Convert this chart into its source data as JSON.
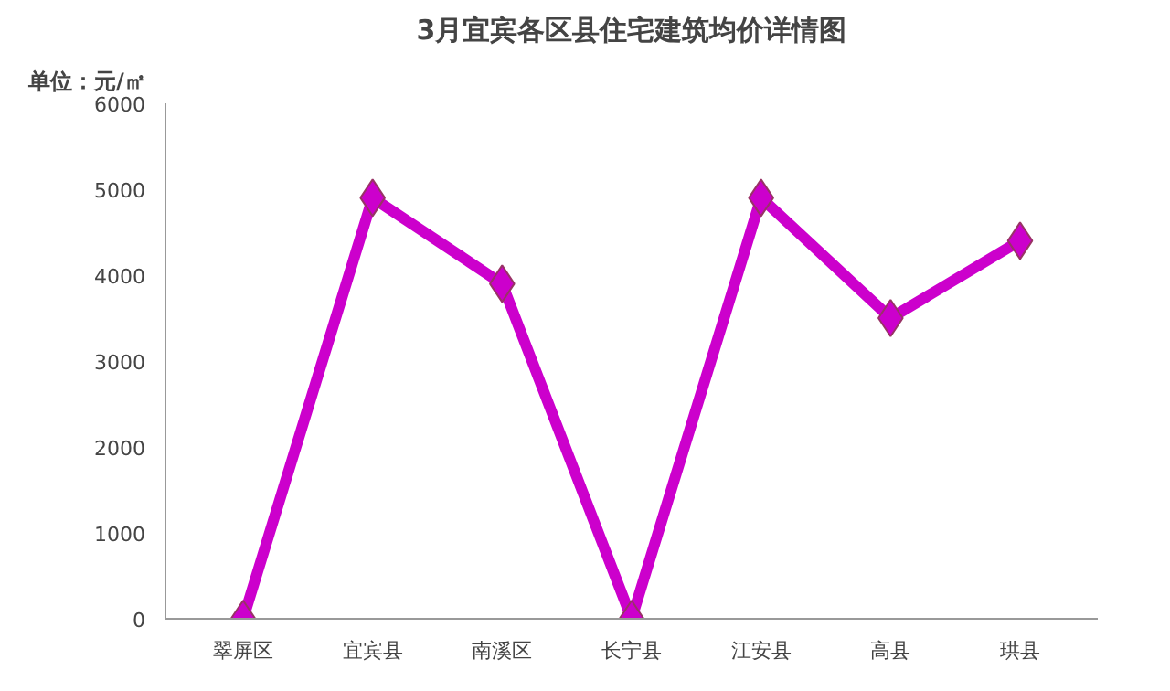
{
  "chart_data": {
    "type": "line",
    "title": "3月宜宾各区县住宅建筑均价详情图",
    "ylabel": "单位：元/㎡",
    "categories": [
      "翠屏区",
      "宜宾县",
      "南溪区",
      "长宁县",
      "江安县",
      "高县",
      "珙县"
    ],
    "series": [
      {
        "color": "#cc00cc",
        "values": [
          0,
          4900,
          3900,
          0,
          4900,
          3500,
          4400
        ]
      }
    ],
    "ylim": [
      0,
      6000
    ],
    "yticks": [
      0,
      1000,
      2000,
      3000,
      4000,
      5000,
      6000
    ],
    "marker": "diamond",
    "line_style": "solid"
  }
}
